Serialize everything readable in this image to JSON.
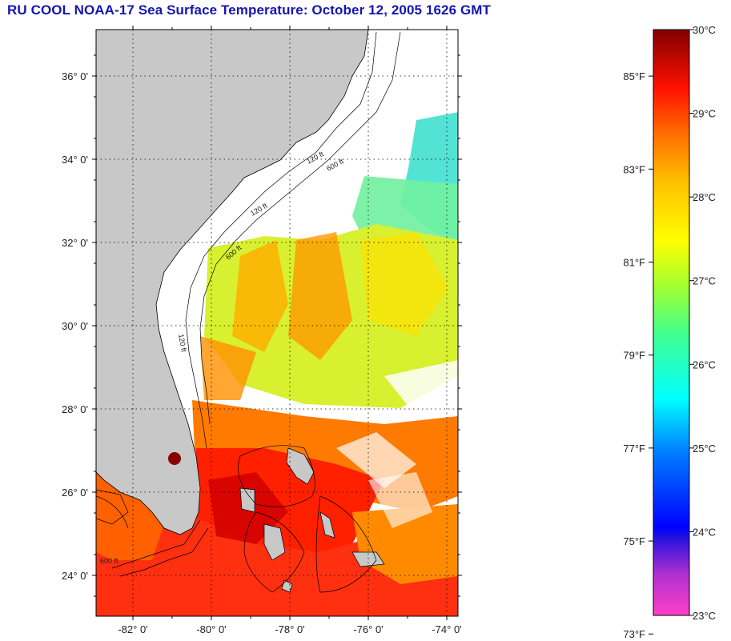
{
  "title": "RU COOL  NOAA-17  Sea Surface Temperature:  October 12, 2005 1626 GMT",
  "map": {
    "lat_labels": [
      {
        "text": "36° 0'",
        "lat": 36
      },
      {
        "text": "34° 0'",
        "lat": 34
      },
      {
        "text": "32° 0'",
        "lat": 32
      },
      {
        "text": "30° 0'",
        "lat": 30
      },
      {
        "text": "28° 0'",
        "lat": 28
      },
      {
        "text": "26° 0'",
        "lat": 26
      },
      {
        "text": "24° 0'",
        "lat": 24
      }
    ],
    "lon_labels": [
      {
        "text": "-82° 0'",
        "lon": -82
      },
      {
        "text": "-80° 0'",
        "lon": -80
      },
      {
        "text": "-78° 0'",
        "lon": -78
      },
      {
        "text": "-76° 0'",
        "lon": -76
      },
      {
        "text": "-74° 0'",
        "lon": -74
      }
    ],
    "contour_labels": [
      "120 ft",
      "600 ft",
      "120 ft",
      "600 ft",
      "120 ft",
      "600 ft"
    ],
    "land_color": "#c8c8c8",
    "cloud_color": "#ffffff"
  },
  "colorbar": {
    "fahrenheit_labels": [
      {
        "text": "85°F",
        "f": 85
      },
      {
        "text": "83°F",
        "f": 83
      },
      {
        "text": "81°F",
        "f": 81
      },
      {
        "text": "79°F",
        "f": 79
      },
      {
        "text": "77°F",
        "f": 77
      },
      {
        "text": "75°F",
        "f": 75
      },
      {
        "text": "73°F",
        "f": 73
      }
    ],
    "celsius_labels": [
      {
        "text": "30°C",
        "c": 30
      },
      {
        "text": "29°C",
        "c": 29
      },
      {
        "text": "28°C",
        "c": 28
      },
      {
        "text": "27°C",
        "c": 27
      },
      {
        "text": "26°C",
        "c": 26
      },
      {
        "text": "25°C",
        "c": 25
      },
      {
        "text": "24°C",
        "c": 24
      },
      {
        "text": "23°C",
        "c": 23
      }
    ],
    "range_c": [
      23,
      30
    ],
    "stops": [
      "#ff40c8",
      "#8030d0",
      "#0000ff",
      "#0090ff",
      "#00ffff",
      "#40ff80",
      "#c0ff20",
      "#ffff00",
      "#ffb000",
      "#ff6000",
      "#ff0000",
      "#8a0000"
    ]
  }
}
